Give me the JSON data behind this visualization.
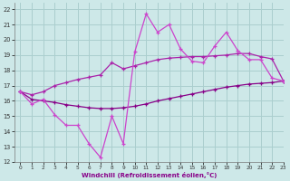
{
  "xlabel": "Windchill (Refroidissement éolien,°C)",
  "xlim": [
    -0.5,
    23
  ],
  "ylim": [
    12,
    22.4
  ],
  "xticks": [
    0,
    1,
    2,
    3,
    4,
    5,
    6,
    7,
    8,
    9,
    10,
    11,
    12,
    13,
    14,
    15,
    16,
    17,
    18,
    19,
    20,
    21,
    22,
    23
  ],
  "yticks": [
    12,
    13,
    14,
    15,
    16,
    17,
    18,
    19,
    20,
    21,
    22
  ],
  "bg_color": "#cde8e8",
  "grid_color": "#aacece",
  "line_color_dark": "#880088",
  "line_color_mid": "#aa22aa",
  "line_color_bright": "#cc44cc",
  "data_main": [
    16.6,
    15.8,
    16.1,
    15.1,
    14.4,
    14.4,
    13.2,
    12.3,
    15.0,
    13.2,
    19.2,
    21.7,
    20.5,
    21.0,
    19.4,
    18.6,
    18.5,
    19.6,
    20.5,
    19.3,
    18.7,
    18.7,
    17.5,
    17.3
  ],
  "data_upper": [
    16.6,
    16.4,
    16.6,
    17.0,
    17.2,
    17.4,
    17.55,
    17.7,
    18.5,
    18.1,
    18.3,
    18.5,
    18.7,
    18.8,
    18.85,
    18.9,
    18.9,
    18.95,
    19.0,
    19.1,
    19.1,
    18.9,
    18.75,
    17.3
  ],
  "data_lower": [
    16.6,
    16.1,
    16.0,
    15.9,
    15.75,
    15.65,
    15.55,
    15.5,
    15.5,
    15.55,
    15.65,
    15.8,
    16.0,
    16.15,
    16.3,
    16.45,
    16.6,
    16.75,
    16.9,
    17.0,
    17.1,
    17.15,
    17.2,
    17.3
  ]
}
